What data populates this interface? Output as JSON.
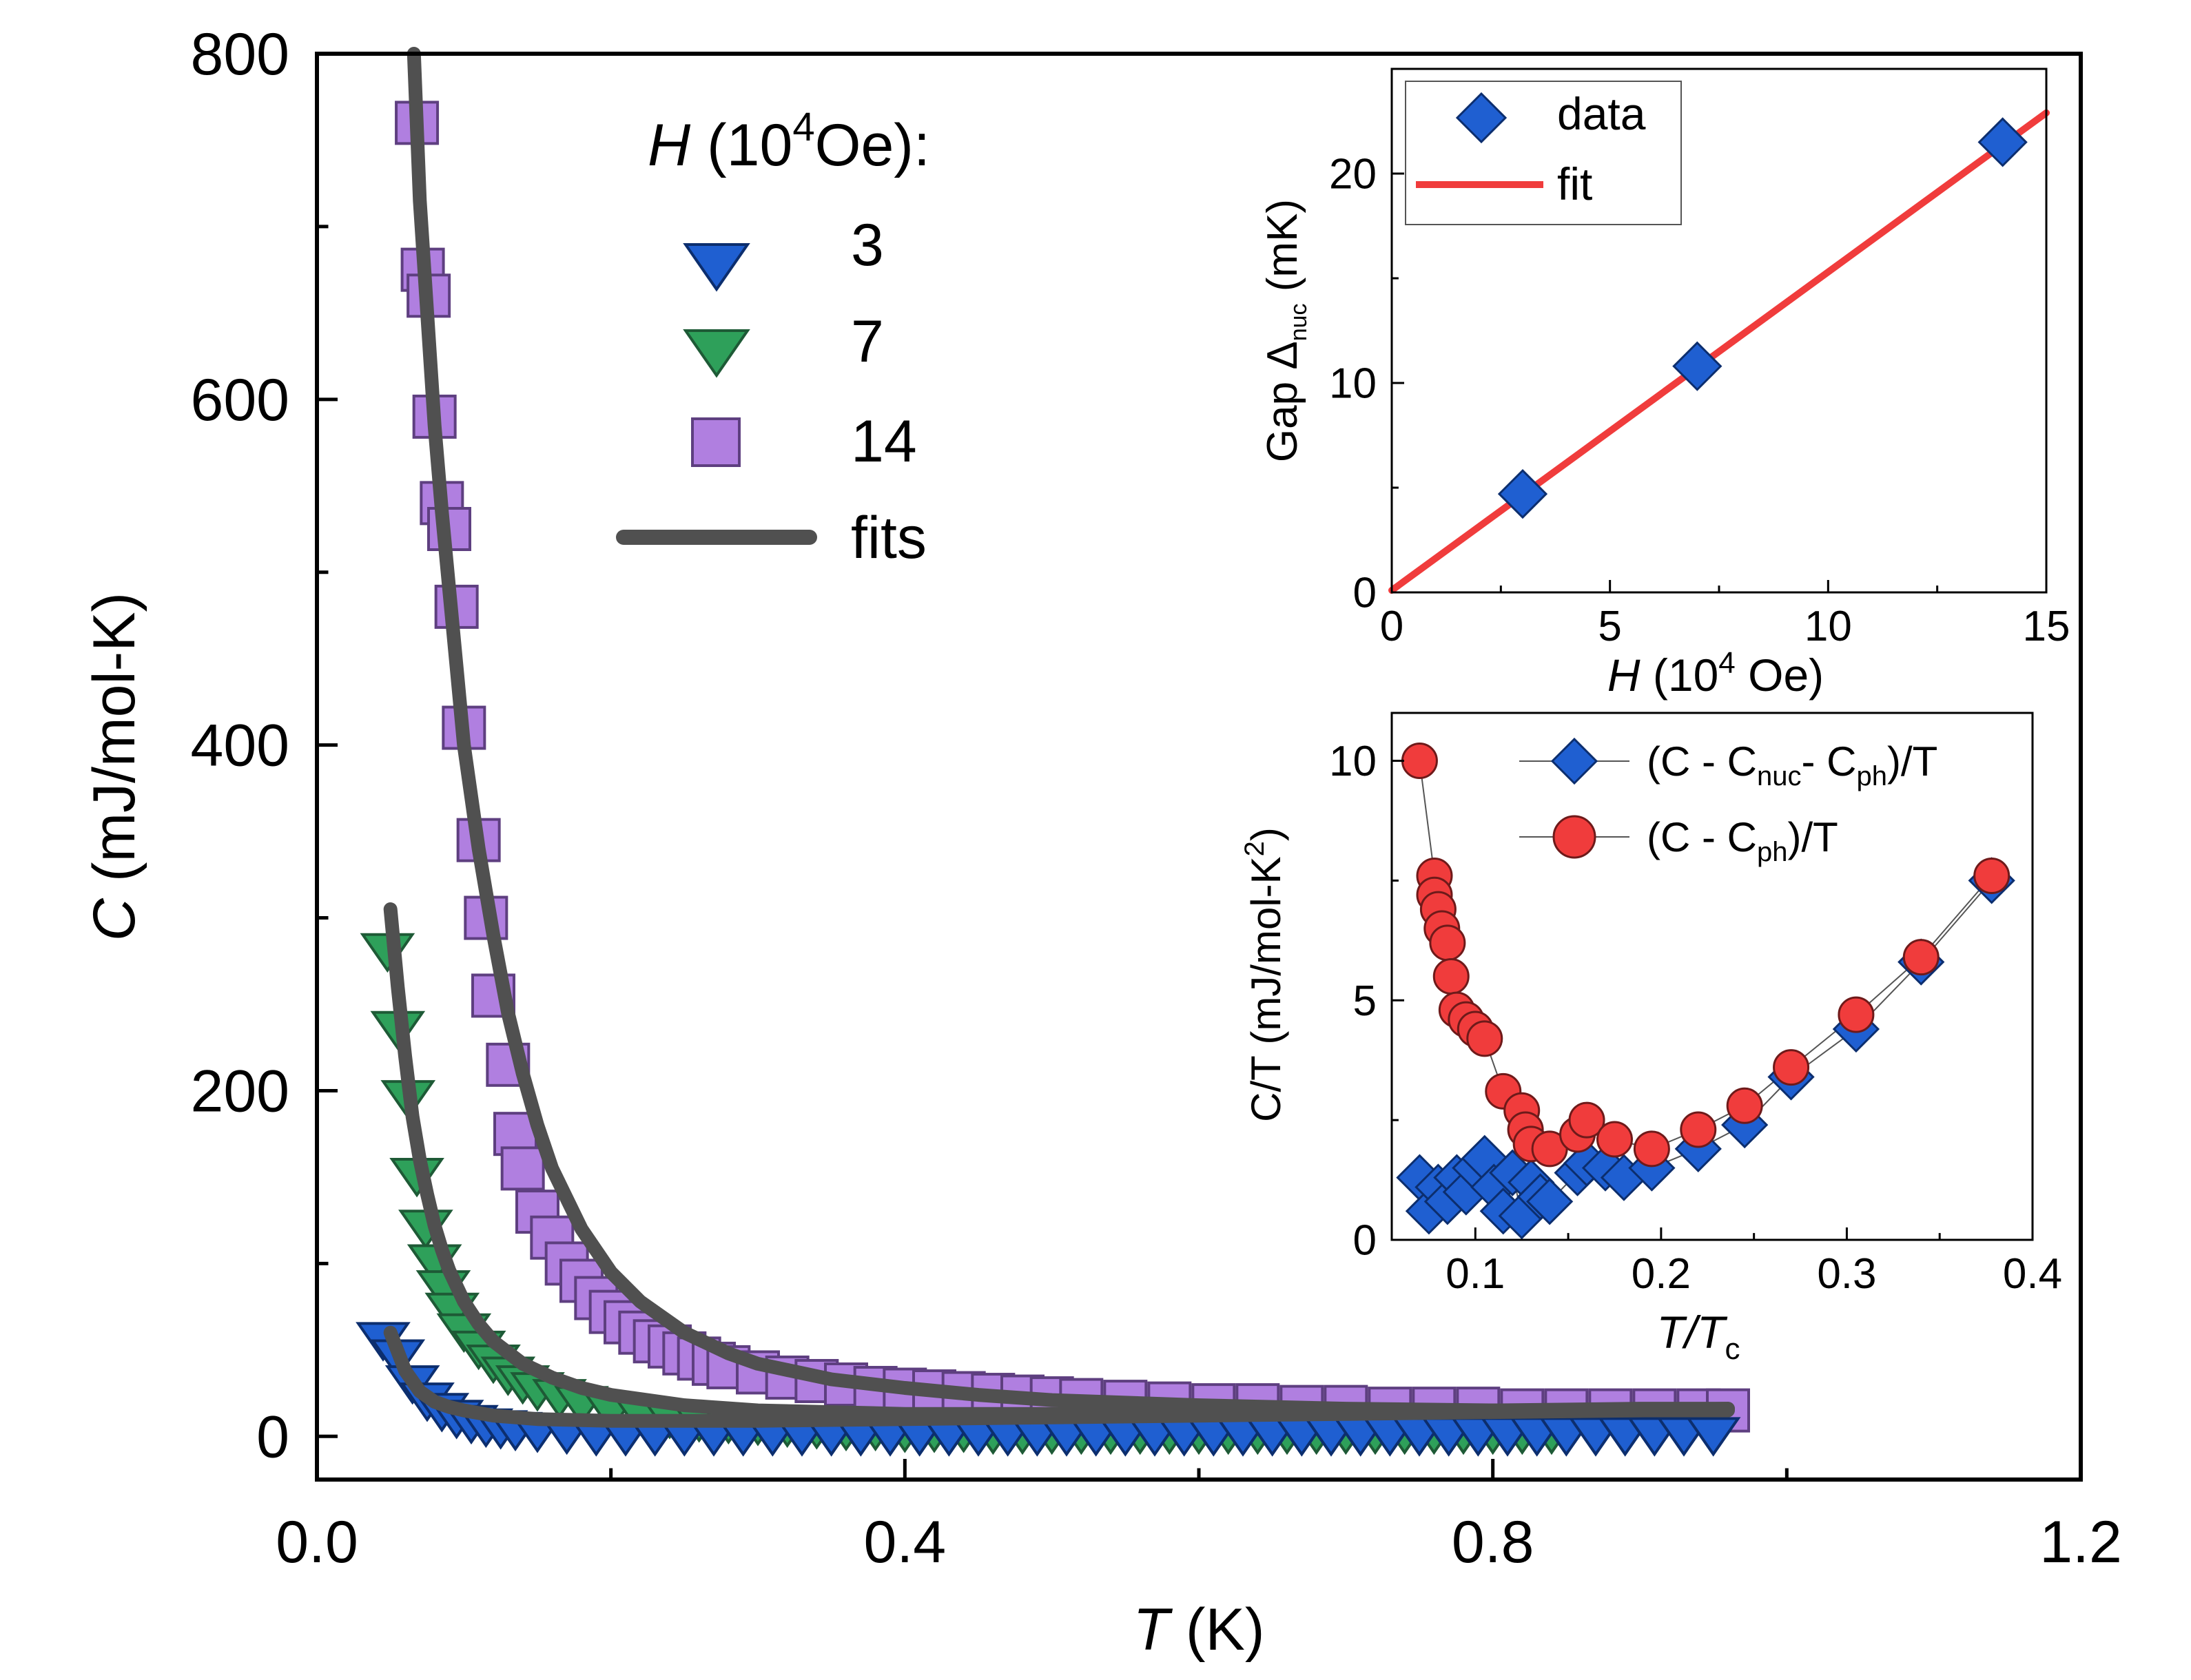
{
  "chart_data": [
    {
      "id": "main",
      "type": "scatter",
      "xlabel_var": "T",
      "xlabel_unit": " (K)",
      "ylabel_var": "C",
      "ylabel_unit": " (mJ/mol-K)",
      "xlim": [
        0.0,
        1.2
      ],
      "ylim": [
        -25,
        800
      ],
      "xticks": [
        "0.0",
        "0.4",
        "0.8",
        "1.2"
      ],
      "yticks": [
        "0",
        "200",
        "400",
        "600",
        "800"
      ],
      "legend": {
        "position": "top-center",
        "title_var": "H",
        "title_rest": " (10",
        "title_sup": "4",
        "title_end": "Oe):",
        "entries": [
          "3",
          "7",
          "14",
          "fits"
        ]
      },
      "colors": {
        "h3": "#1f5fd1",
        "h7": "#2ea05a",
        "h14": "#b07fe0",
        "fit": "#505050"
      },
      "series": [
        {
          "name": "3",
          "marker": "triangle-down",
          "x": [
            0.045,
            0.055,
            0.065,
            0.075,
            0.085,
            0.095,
            0.105,
            0.115,
            0.125,
            0.135,
            0.15,
            0.17,
            0.19,
            0.21,
            0.23,
            0.25,
            0.27,
            0.29,
            0.31,
            0.33,
            0.35,
            0.37,
            0.39,
            0.41,
            0.43,
            0.45,
            0.47,
            0.49,
            0.51,
            0.53,
            0.55,
            0.57,
            0.59,
            0.61,
            0.63,
            0.65,
            0.67,
            0.69,
            0.71,
            0.73,
            0.75,
            0.77,
            0.79,
            0.81,
            0.83,
            0.85,
            0.87,
            0.89,
            0.91,
            0.93,
            0.95
          ],
          "y": [
            55,
            45,
            30,
            20,
            14,
            10,
            7,
            5,
            4,
            3,
            2,
            1,
            0,
            0,
            0,
            0,
            0,
            0,
            0,
            0,
            0,
            0,
            0,
            0,
            0,
            0,
            0,
            0,
            0,
            0,
            0,
            0,
            0,
            0,
            0,
            0,
            0,
            0,
            0,
            0,
            0,
            0,
            0,
            0,
            0,
            0,
            0,
            0,
            0,
            0,
            0
          ]
        },
        {
          "name": "7",
          "marker": "triangle-down",
          "x": [
            0.048,
            0.055,
            0.062,
            0.068,
            0.074,
            0.08,
            0.086,
            0.092,
            0.1,
            0.11,
            0.12,
            0.13,
            0.14,
            0.15,
            0.165,
            0.18,
            0.2,
            0.22,
            0.24,
            0.26,
            0.28,
            0.3,
            0.32,
            0.34,
            0.36,
            0.38,
            0.4,
            0.42,
            0.44,
            0.46,
            0.48,
            0.5,
            0.52,
            0.54,
            0.56,
            0.58,
            0.6,
            0.62,
            0.64,
            0.66,
            0.68,
            0.7,
            0.72,
            0.74,
            0.76,
            0.78,
            0.8,
            0.82,
            0.84
          ],
          "y": [
            280,
            235,
            195,
            150,
            120,
            100,
            85,
            72,
            60,
            50,
            42,
            35,
            30,
            26,
            22,
            18,
            14,
            12,
            10,
            8,
            7,
            6,
            5,
            4,
            3,
            3,
            2,
            2,
            2,
            1,
            1,
            1,
            1,
            1,
            1,
            1,
            1,
            1,
            1,
            1,
            1,
            1,
            1,
            1,
            1,
            1,
            1,
            1,
            1
          ]
        },
        {
          "name": "14",
          "marker": "square",
          "x": [
            0.068,
            0.072,
            0.076,
            0.08,
            0.085,
            0.09,
            0.095,
            0.1,
            0.11,
            0.115,
            0.12,
            0.13,
            0.135,
            0.14,
            0.15,
            0.16,
            0.17,
            0.18,
            0.19,
            0.2,
            0.21,
            0.22,
            0.23,
            0.24,
            0.25,
            0.26,
            0.27,
            0.28,
            0.3,
            0.32,
            0.34,
            0.36,
            0.38,
            0.4,
            0.42,
            0.44,
            0.46,
            0.48,
            0.5,
            0.52,
            0.55,
            0.58,
            0.61,
            0.64,
            0.67,
            0.7,
            0.73,
            0.76,
            0.79,
            0.82,
            0.85,
            0.88,
            0.91,
            0.94,
            0.96
          ],
          "y": [
            760,
            675,
            660,
            590,
            540,
            525,
            480,
            410,
            345,
            300,
            255,
            215,
            175,
            155,
            130,
            115,
            100,
            90,
            80,
            72,
            66,
            60,
            55,
            52,
            48,
            45,
            42,
            40,
            37,
            34,
            32,
            30,
            28,
            27,
            26,
            25,
            24,
            23,
            22,
            21,
            20,
            19,
            18,
            18,
            17,
            17,
            16,
            16,
            16,
            15,
            15,
            15,
            15,
            15,
            15
          ]
        }
      ],
      "fits": [
        {
          "name": "fit-3",
          "x": [
            0.05,
            0.06,
            0.07,
            0.08,
            0.09,
            0.1,
            0.12,
            0.15,
            0.2,
            0.3,
            0.4,
            0.5,
            0.6,
            0.7,
            0.8,
            0.9,
            0.96
          ],
          "y": [
            60,
            38,
            26,
            20,
            17,
            15,
            12,
            10,
            9,
            9,
            10,
            11,
            12,
            13,
            14,
            15,
            16
          ]
        },
        {
          "name": "fit-7",
          "x": [
            0.05,
            0.055,
            0.06,
            0.065,
            0.07,
            0.075,
            0.08,
            0.085,
            0.09,
            0.1,
            0.11,
            0.12,
            0.14,
            0.16,
            0.18,
            0.2,
            0.25,
            0.3,
            0.4,
            0.5,
            0.6,
            0.7,
            0.8,
            0.9,
            0.96
          ],
          "y": [
            305,
            260,
            220,
            185,
            160,
            140,
            122,
            108,
            96,
            78,
            65,
            55,
            42,
            34,
            28,
            24,
            18,
            15,
            13,
            13,
            13,
            14,
            15,
            16,
            16
          ]
        },
        {
          "name": "fit-14",
          "x": [
            0.066,
            0.07,
            0.075,
            0.08,
            0.085,
            0.09,
            0.095,
            0.1,
            0.11,
            0.12,
            0.13,
            0.14,
            0.15,
            0.16,
            0.18,
            0.2,
            0.22,
            0.25,
            0.28,
            0.3,
            0.35,
            0.4,
            0.45,
            0.5,
            0.6,
            0.7,
            0.8,
            0.9,
            0.96
          ],
          "y": [
            800,
            715,
            650,
            585,
            535,
            490,
            445,
            400,
            340,
            290,
            245,
            210,
            180,
            155,
            120,
            95,
            78,
            60,
            48,
            42,
            33,
            28,
            24,
            21,
            18,
            16,
            15,
            15,
            15
          ]
        }
      ]
    },
    {
      "id": "inset-gap",
      "type": "scatter",
      "xlabel_var": "H",
      "xlabel_unit": " (10",
      "xlabel_sup": "4",
      "xlabel_end": " Oe)",
      "ylabel_pre": "Gap Δ",
      "ylabel_sub": "nuc",
      "ylabel_post": " (mK)",
      "xlim": [
        0,
        15
      ],
      "ylim": [
        0,
        25
      ],
      "xticks": [
        "0",
        "5",
        "10",
        "15"
      ],
      "yticks": [
        "0",
        "10",
        "20"
      ],
      "legend": {
        "position": "top-left",
        "entries": [
          "data",
          "fit"
        ]
      },
      "colors": {
        "data": "#1f5fd1",
        "fit": "#f03c3c"
      },
      "series": [
        {
          "name": "data",
          "marker": "diamond",
          "x": [
            3,
            7,
            14
          ],
          "y": [
            4.7,
            10.8,
            21.5
          ]
        }
      ],
      "fit": {
        "name": "fit",
        "x": [
          0,
          15
        ],
        "y": [
          0.1,
          22.9
        ]
      }
    },
    {
      "id": "inset-ct",
      "type": "scatter",
      "xlabel_pre": "T/T",
      "xlabel_sub": "c",
      "ylabel_pre": "C/T (mJ/mol-K",
      "ylabel_sup": "2",
      "ylabel_post": ")",
      "xlim": [
        0.055,
        0.4
      ],
      "ylim": [
        0,
        11
      ],
      "xticks": [
        "0.1",
        "0.2",
        "0.3",
        "0.4"
      ],
      "yticks": [
        "0",
        "5",
        "10"
      ],
      "legend": {
        "position": "top-right",
        "entries": [
          {
            "pre": "(C - C",
            "sub1": "nuc",
            "mid": "- C",
            "sub2": "ph",
            "post": ")/T"
          },
          {
            "pre": "(C - C",
            "sub1": "ph",
            "post": ")/T"
          }
        ]
      },
      "colors": {
        "diamond": "#1f5fd1",
        "circle": "#f03c3c",
        "line": "#555555"
      },
      "series": [
        {
          "name": "(C - Cnuc- Cph)/T",
          "marker": "diamond",
          "x": [
            0.07,
            0.075,
            0.08,
            0.085,
            0.09,
            0.095,
            0.1,
            0.105,
            0.11,
            0.115,
            0.12,
            0.125,
            0.13,
            0.135,
            0.14,
            0.155,
            0.16,
            0.17,
            0.18,
            0.195,
            0.22,
            0.245,
            0.27,
            0.305,
            0.34,
            0.378
          ],
          "y": [
            1.3,
            0.6,
            1.1,
            0.8,
            1.3,
            1.0,
            1.5,
            1.7,
            1.1,
            0.6,
            1.4,
            0.5,
            1.2,
            0.9,
            0.8,
            1.4,
            1.6,
            1.5,
            1.3,
            1.5,
            1.9,
            2.4,
            3.4,
            4.4,
            5.8,
            7.5
          ]
        },
        {
          "name": "(C - Cph)/T",
          "marker": "circle",
          "x": [
            0.07,
            0.078,
            0.078,
            0.08,
            0.082,
            0.085,
            0.087,
            0.09,
            0.095,
            0.1,
            0.105,
            0.115,
            0.125,
            0.127,
            0.13,
            0.14,
            0.155,
            0.16,
            0.175,
            0.195,
            0.22,
            0.245,
            0.27,
            0.305,
            0.34,
            0.378
          ],
          "y": [
            10.0,
            7.6,
            7.2,
            6.9,
            6.5,
            6.2,
            5.5,
            4.8,
            4.6,
            4.4,
            4.2,
            3.1,
            2.7,
            2.3,
            2.0,
            1.9,
            2.2,
            2.5,
            2.1,
            1.9,
            2.3,
            2.8,
            3.6,
            4.7,
            5.9,
            7.6
          ]
        }
      ]
    }
  ]
}
